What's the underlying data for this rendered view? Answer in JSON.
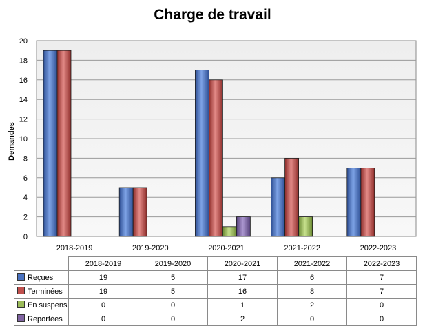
{
  "chart_data": {
    "type": "bar",
    "title": "Charge de travail",
    "ylabel": "Demandes",
    "xlabel": "",
    "categories": [
      "2018-2019",
      "2019-2020",
      "2020-2021",
      "2021-2022",
      "2022-2023"
    ],
    "ylim": [
      0,
      20
    ],
    "yticks": [
      0,
      2,
      4,
      6,
      8,
      10,
      12,
      14,
      16,
      18,
      20
    ],
    "grid": true,
    "legend": "data-table",
    "series": [
      {
        "name": "Reçues",
        "color": "#4a72c0",
        "values": [
          19,
          5,
          17,
          6,
          7
        ]
      },
      {
        "name": "Terminées",
        "color": "#c0504d",
        "values": [
          19,
          5,
          16,
          8,
          7
        ]
      },
      {
        "name": "En suspens",
        "color": "#9bbb59",
        "values": [
          0,
          0,
          1,
          2,
          0
        ]
      },
      {
        "name": "Reportées",
        "color": "#8064a2",
        "values": [
          0,
          0,
          2,
          0,
          0
        ]
      }
    ]
  }
}
